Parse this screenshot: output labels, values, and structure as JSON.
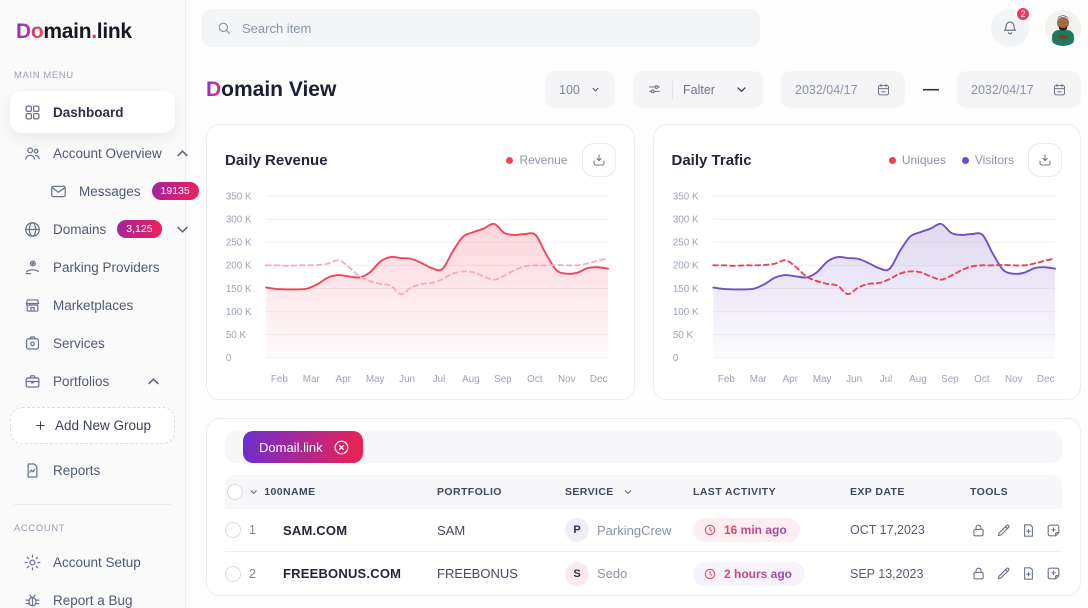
{
  "brand": {
    "logo_gradient": "Do",
    "logo_black1": "main",
    "logo_dot": ".",
    "logo_black2": "link"
  },
  "topbar": {
    "search_placeholder": "Search item",
    "notification_count": "2"
  },
  "sidebar": {
    "sections": [
      {
        "label": "MAIN MENU",
        "items": [
          {
            "label": "Dashboard"
          },
          {
            "label": "Account Overview"
          },
          {
            "label": "Messages",
            "badge": "19135"
          },
          {
            "label": "Domains",
            "badge": "3,125"
          },
          {
            "label": "Parking Providers"
          },
          {
            "label": "Marketplaces"
          },
          {
            "label": "Services"
          },
          {
            "label": "Portfolios"
          },
          {
            "label": "Add New Group"
          },
          {
            "label": "Reports"
          }
        ]
      },
      {
        "label": "ACCOUNT",
        "items": [
          {
            "label": "Account Setup"
          },
          {
            "label": "Report a Bug"
          }
        ]
      }
    ]
  },
  "page": {
    "title_accent": "D",
    "title_rest": "omain View"
  },
  "controls": {
    "per_page": "100",
    "filter_label": "Falter",
    "date_from": "2032/04/17",
    "date_separator": "—",
    "date_to": "2032/04/17"
  },
  "chart_data": [
    {
      "type": "area",
      "title": "Daily Revenue",
      "x_labels": [
        "Feb",
        "Mar",
        "Apr",
        "May",
        "Jun",
        "Jul",
        "Aug",
        "Sep",
        "Oct",
        "Nov",
        "Dec"
      ],
      "y_tick_labels": [
        "350 K",
        "300 K",
        "250 K",
        "200 K",
        "150 K",
        "100 K",
        "50 K",
        "0"
      ],
      "ylim_thousands": [
        0,
        350
      ],
      "grid": true,
      "legend": [
        {
          "label": "Revenue",
          "color": "#f0435c"
        }
      ],
      "series": [
        {
          "name": "revenue",
          "color": "#f0435c",
          "dash": false,
          "fill": true,
          "values_thousands": [
            152,
            149,
            148,
            148,
            150,
            160,
            174,
            179,
            176,
            174,
            185,
            208,
            218,
            216,
            214,
            205,
            194,
            192,
            230,
            262,
            272,
            280,
            290,
            270,
            266,
            268,
            266,
            225,
            190,
            182,
            184,
            194,
            196,
            193
          ]
        },
        {
          "name": "revenue-trend-dashed",
          "color": "#f6aebe",
          "dash": true,
          "fill": false,
          "values_thousands": [
            200,
            200,
            199,
            200,
            200,
            201,
            204,
            211,
            196,
            176,
            166,
            160,
            156,
            138,
            152,
            160,
            162,
            170,
            182,
            187,
            185,
            176,
            169,
            178,
            190,
            198,
            200,
            200,
            201,
            200,
            200,
            204,
            210,
            215
          ]
        }
      ]
    },
    {
      "type": "area",
      "title": "Daily Trafic",
      "x_labels": [
        "Feb",
        "Mar",
        "Apr",
        "May",
        "Jun",
        "Jul",
        "Aug",
        "Sep",
        "Oct",
        "Nov",
        "Dec"
      ],
      "y_tick_labels": [
        "350 K",
        "300 K",
        "250 K",
        "200 K",
        "150 K",
        "100 K",
        "50 K",
        "0"
      ],
      "ylim_thousands": [
        0,
        350
      ],
      "grid": true,
      "legend": [
        {
          "label": "Uniques",
          "color": "#ee4056"
        },
        {
          "label": "Visitors",
          "color": "#7150c0"
        }
      ],
      "series": [
        {
          "name": "visitors",
          "color": "#7150c0",
          "dash": false,
          "fill": true,
          "values_thousands": [
            152,
            149,
            148,
            148,
            150,
            160,
            174,
            179,
            176,
            174,
            185,
            208,
            218,
            216,
            214,
            205,
            194,
            192,
            230,
            262,
            272,
            280,
            290,
            270,
            266,
            268,
            266,
            225,
            190,
            182,
            184,
            194,
            196,
            193
          ]
        },
        {
          "name": "uniques",
          "color": "#ee4056",
          "dash": true,
          "fill": false,
          "values_thousands": [
            200,
            200,
            199,
            200,
            200,
            201,
            204,
            211,
            196,
            176,
            166,
            160,
            156,
            138,
            152,
            160,
            162,
            170,
            182,
            187,
            185,
            176,
            169,
            178,
            190,
            198,
            200,
            200,
            201,
            200,
            200,
            204,
            210,
            215
          ]
        }
      ]
    }
  ],
  "table": {
    "chip_label": "Domail.link",
    "header": {
      "count": "100",
      "name": "NAME",
      "portfolio": "PORTFOLIO",
      "service": "SERVICE",
      "last_activity": "LAST ACTIVITY",
      "exp_date": "EXP DATE",
      "tools": "TOOLS"
    },
    "rows": [
      {
        "num": "1",
        "name": "SAM.COM",
        "portfolio": "SAM",
        "service_initial": "P",
        "service": "ParkingCrew",
        "last_activity": "16 min ago",
        "exp_date": "OCT 17,2023"
      },
      {
        "num": "2",
        "name": "FREEBONUS.COM",
        "portfolio": "FREEBONUS",
        "service_initial": "S",
        "service": "Sedo",
        "last_activity": "2 hours ago",
        "exp_date": "SEP 13,2023"
      }
    ]
  }
}
